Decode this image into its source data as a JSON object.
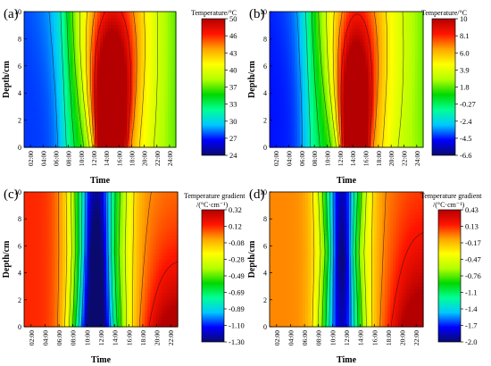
{
  "chart_data": [
    {
      "type": "heatmap",
      "panel_label": "(a)",
      "title": "",
      "xlabel": "Time",
      "ylabel": "Depth/cm",
      "x_ticks": [
        "02:00",
        "04:00",
        "06:00",
        "08:00",
        "10:00",
        "12:00",
        "14:00",
        "16:00",
        "18:00",
        "20:00",
        "22:00",
        "24:00"
      ],
      "y_ticks": [
        "0",
        "2",
        "4",
        "6",
        "8",
        "10"
      ],
      "y_range": [
        0,
        10
      ],
      "colorbar": {
        "title": "Temperature/°C",
        "ticks": [
          "50",
          "46",
          "43",
          "40",
          "37",
          "33",
          "30",
          "27",
          "24"
        ],
        "colors": [
          "#0a0a6e",
          "#0000ff",
          "#00c8ff",
          "#00ff96",
          "#00d800",
          "#b4ff00",
          "#ffff00",
          "#ffa500",
          "#ff1400",
          "#b40000"
        ]
      },
      "description_values": {
        "min": 24,
        "max": 50,
        "peak_time": "14:00",
        "peak_depth_cm": 0
      },
      "field": "warmPeak"
    },
    {
      "type": "heatmap",
      "panel_label": "(b)",
      "title": "",
      "xlabel": "Time",
      "ylabel": "Depth/cm",
      "x_ticks": [
        "02:00",
        "04:00",
        "06:00",
        "08:00",
        "10:00",
        "12:00",
        "14:00",
        "16:00",
        "18:00",
        "20:00",
        "22:00",
        "24:00"
      ],
      "y_ticks": [
        "0",
        "2",
        "4",
        "6",
        "8",
        "10"
      ],
      "y_range": [
        0,
        10
      ],
      "colorbar": {
        "title": "Temperature/°C",
        "ticks": [
          "10",
          "8.1",
          "6.0",
          "3.9",
          "1.8",
          "-0.27",
          "-2.4",
          "-4.5",
          "-6.6"
        ],
        "colors": [
          "#0a0a6e",
          "#0000ff",
          "#00c8ff",
          "#00ff96",
          "#00d800",
          "#b4ff00",
          "#ffff00",
          "#ffa500",
          "#ff1400",
          "#b40000"
        ]
      },
      "description_values": {
        "min": -6.6,
        "max": 10,
        "peak_time": "14:00",
        "peak_depth_cm": 0
      },
      "field": "coolPeak"
    },
    {
      "type": "heatmap",
      "panel_label": "(c)",
      "title": "",
      "xlabel": "Time",
      "ylabel": "Depth/cm",
      "x_ticks": [
        "02:00",
        "04:00",
        "06:00",
        "08:00",
        "10:00",
        "12:00",
        "14:00",
        "16:00",
        "18:00",
        "20:00",
        "22:00"
      ],
      "y_ticks": [
        "0",
        "2",
        "4",
        "6",
        "8",
        "10"
      ],
      "y_range": [
        0,
        10
      ],
      "colorbar": {
        "title": "Temperature gradient",
        "unit": "/(°C·cm⁻¹)",
        "ticks": [
          "0.32",
          "0.12",
          "-0.08",
          "-0.28",
          "-0.49",
          "-0.69",
          "-0.89",
          "-1.10",
          "-1.30"
        ],
        "colors": [
          "#0a0a6e",
          "#0000ff",
          "#00c8ff",
          "#00ff96",
          "#00d800",
          "#b4ff00",
          "#ffff00",
          "#ffa500",
          "#ff1400",
          "#b40000"
        ]
      },
      "description_values": {
        "min": -1.3,
        "max": 0.32
      },
      "field": "gradC"
    },
    {
      "type": "heatmap",
      "panel_label": "(d)",
      "title": "",
      "xlabel": "Time",
      "ylabel": "Depth/cm",
      "x_ticks": [
        "02:00",
        "04:00",
        "06:00",
        "08:00",
        "10:00",
        "12:00",
        "14:00",
        "16:00",
        "18:00",
        "20:00",
        "22:00"
      ],
      "y_ticks": [
        "0",
        "2",
        "4",
        "6",
        "8",
        "10"
      ],
      "y_range": [
        0,
        10
      ],
      "colorbar": {
        "title": "Temperature gradient",
        "unit": "/(°C·cm⁻¹)",
        "ticks": [
          "0.43",
          "0.13",
          "-0.17",
          "-0.47",
          "-0.76",
          "-1.1",
          "-1.4",
          "-1.7",
          "-2.0"
        ],
        "colors": [
          "#0a0a6e",
          "#0000ff",
          "#00c8ff",
          "#00ff96",
          "#00d800",
          "#b4ff00",
          "#ffff00",
          "#ffa500",
          "#ff1400",
          "#b40000"
        ]
      },
      "description_values": {
        "min": -2.0,
        "max": 0.43
      },
      "field": "gradD"
    }
  ]
}
